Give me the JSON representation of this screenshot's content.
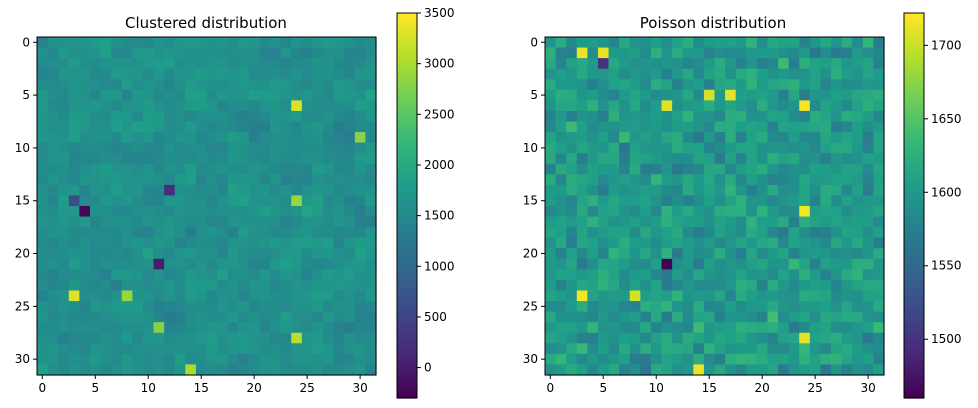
{
  "chart_data": [
    {
      "type": "heatmap",
      "title": "Clustered distribution",
      "grid_size": [
        32,
        32
      ],
      "x_ticks": [
        0,
        5,
        10,
        15,
        20,
        25,
        30
      ],
      "y_ticks": [
        0,
        5,
        10,
        15,
        20,
        25,
        30
      ],
      "x_tick_labels": [
        "0",
        "5",
        "10",
        "15",
        "20",
        "25",
        "30"
      ],
      "y_tick_labels": [
        "0",
        "5",
        "10",
        "15",
        "20",
        "25",
        "30"
      ],
      "colormap": "viridis",
      "colorbar": {
        "range": [
          -300,
          3500
        ],
        "ticks": [
          0,
          500,
          1000,
          1500,
          2000,
          2500,
          3000,
          3500
        ],
        "tick_labels": [
          "0",
          "500",
          "1000",
          "1500",
          "2000",
          "2500",
          "3000",
          "3500"
        ]
      },
      "base_value": 1600,
      "noise_amplitude": 600,
      "notable_cells": [
        {
          "row": 6,
          "col": 24,
          "value": 3300
        },
        {
          "row": 24,
          "col": 3,
          "value": 3300
        },
        {
          "row": 28,
          "col": 24,
          "value": 3100
        },
        {
          "row": 16,
          "col": 4,
          "value": -250
        },
        {
          "row": 21,
          "col": 11,
          "value": 0
        },
        {
          "row": 14,
          "col": 12,
          "value": 200
        },
        {
          "row": 15,
          "col": 3,
          "value": 600
        },
        {
          "row": 27,
          "col": 11,
          "value": 2800
        },
        {
          "row": 31,
          "col": 14,
          "value": 3000
        },
        {
          "row": 15,
          "col": 24,
          "value": 2900
        },
        {
          "row": 9,
          "col": 30,
          "value": 2800
        },
        {
          "row": 24,
          "col": 8,
          "value": 2900
        }
      ]
    },
    {
      "type": "heatmap",
      "title": "Poisson distribution",
      "grid_size": [
        32,
        32
      ],
      "x_ticks": [
        0,
        5,
        10,
        15,
        20,
        25,
        30
      ],
      "y_ticks": [
        0,
        5,
        10,
        15,
        20,
        25,
        30
      ],
      "x_tick_labels": [
        "0",
        "5",
        "10",
        "15",
        "20",
        "25",
        "30"
      ],
      "y_tick_labels": [
        "0",
        "5",
        "10",
        "15",
        "20",
        "25",
        "30"
      ],
      "colormap": "viridis",
      "colorbar": {
        "range": [
          1460,
          1722
        ],
        "ticks": [
          1500,
          1550,
          1600,
          1650,
          1700
        ],
        "tick_labels": [
          "1500",
          "1550",
          "1600",
          "1650",
          "1700"
        ]
      },
      "base_value": 1600,
      "noise_amplitude": 45,
      "notable_cells": [
        {
          "row": 1,
          "col": 3,
          "value": 1715
        },
        {
          "row": 1,
          "col": 5,
          "value": 1712
        },
        {
          "row": 5,
          "col": 15,
          "value": 1705
        },
        {
          "row": 5,
          "col": 17,
          "value": 1712
        },
        {
          "row": 6,
          "col": 11,
          "value": 1710
        },
        {
          "row": 6,
          "col": 24,
          "value": 1718
        },
        {
          "row": 16,
          "col": 24,
          "value": 1718
        },
        {
          "row": 24,
          "col": 3,
          "value": 1718
        },
        {
          "row": 24,
          "col": 8,
          "value": 1705
        },
        {
          "row": 28,
          "col": 24,
          "value": 1712
        },
        {
          "row": 31,
          "col": 14,
          "value": 1715
        },
        {
          "row": 21,
          "col": 11,
          "value": 1462
        },
        {
          "row": 2,
          "col": 5,
          "value": 1500
        }
      ]
    }
  ],
  "colors": {
    "colormap_stops": [
      "#440154",
      "#482878",
      "#3e4989",
      "#31688e",
      "#26828e",
      "#1f9e89",
      "#35b779",
      "#6ece58",
      "#b5de2b",
      "#fde725"
    ]
  }
}
